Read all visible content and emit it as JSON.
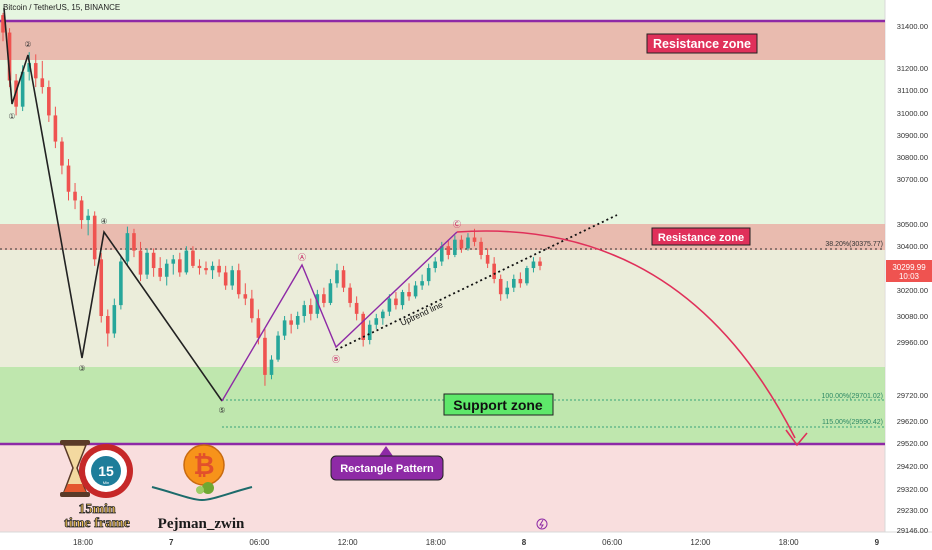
{
  "header": {
    "title": "Bitcoin / TetherUS, 15, BINANCE"
  },
  "colors": {
    "up": "#26a69a",
    "down": "#ef5350",
    "wick": "#3d3d3d",
    "resistance_fill": "#e9b0a6",
    "support_fill": "#b7e4a4",
    "bg_green": "#e6f6e0",
    "bg_pink": "#f9dede",
    "projection": "#e0305a",
    "purple": "#8e2aa6",
    "wave_line": "#222222"
  },
  "zones": {
    "resistance_top": {
      "label": "Resistance zone",
      "from": 31240,
      "to": 31430
    },
    "resistance_mid": {
      "label": "Resistance zone",
      "from": 30375,
      "to": 30490
    },
    "support": {
      "label": "Support zone",
      "from": 29520,
      "to": 29840
    }
  },
  "levels": {
    "fib_382": "38.20%(30375.77)",
    "fib_100": "100.00%(29701.02)",
    "fib_115": "115.00%(29590.42)"
  },
  "price_tag": {
    "price": "30299.99",
    "countdown": "10:03"
  },
  "annotations": {
    "rectangle_pattern": "Rectangle Pattern",
    "uptrend_line": "Uptrend line",
    "wave_labels": [
      "①",
      "②",
      "③",
      "④",
      "⑤"
    ],
    "abc_labels": [
      "Ⓐ",
      "Ⓑ",
      "Ⓒ"
    ]
  },
  "branding": {
    "timeframe_badge": "15",
    "badge_sub": "Min",
    "timeframe_line1": "15min",
    "timeframe_line2": "time frame",
    "author": "Pejman_zwin"
  },
  "chart_data": {
    "type": "candlestick",
    "title": "Bitcoin / TetherUS, 15, BINANCE",
    "price_axis": {
      "ticks": [
        31400,
        31200,
        31100,
        31000,
        30900,
        30800,
        30700,
        30500,
        30400,
        30200,
        30080,
        29960,
        29720,
        29620,
        29520,
        29420,
        29320,
        29230,
        29146
      ],
      "tick_labels": [
        "31400.00",
        "31200.00",
        "31100.00",
        "31000.00",
        "30900.00",
        "30800.00",
        "30700.00",
        "30500.00",
        "30400.00",
        "30200.00",
        "30080.00",
        "29960.00",
        "29720.00",
        "29620.00",
        "29520.00",
        "29420.00",
        "29320.00",
        "29230.00",
        "29146.00"
      ],
      "range": [
        29140,
        31460
      ]
    },
    "time_axis": {
      "labels": [
        "18:00",
        "7",
        "06:00",
        "12:00",
        "18:00",
        "8",
        "06:00",
        "12:00",
        "18:00",
        "9"
      ]
    },
    "last_price": 30299.99,
    "waves": [
      {
        "label": "①",
        "price": 31030
      },
      {
        "label": "②",
        "price": 31270
      },
      {
        "label": "③",
        "price": 29910
      },
      {
        "label": "④",
        "price": 30470
      },
      {
        "label": "⑤",
        "price": 29701
      },
      {
        "label": "Ⓐ",
        "price": 30300
      },
      {
        "label": "Ⓑ",
        "price": 29930
      },
      {
        "label": "Ⓒ",
        "price": 30445
      }
    ],
    "candles": [
      [
        31450,
        31460,
        31330,
        31370
      ],
      [
        31370,
        31390,
        31120,
        31150
      ],
      [
        31150,
        31180,
        30990,
        31030
      ],
      [
        31030,
        31220,
        31010,
        31190
      ],
      [
        31190,
        31280,
        31150,
        31230
      ],
      [
        31230,
        31270,
        31120,
        31160
      ],
      [
        31160,
        31240,
        31090,
        31120
      ],
      [
        31120,
        31150,
        30960,
        30990
      ],
      [
        30990,
        31030,
        30840,
        30870
      ],
      [
        30870,
        30890,
        30720,
        30760
      ],
      [
        30760,
        30790,
        30600,
        30640
      ],
      [
        30640,
        30680,
        30560,
        30600
      ],
      [
        30600,
        30620,
        30470,
        30510
      ],
      [
        30510,
        30560,
        30440,
        30530
      ],
      [
        30530,
        30550,
        30300,
        30330
      ],
      [
        30330,
        30360,
        30040,
        30070
      ],
      [
        30070,
        30100,
        29930,
        29990
      ],
      [
        29990,
        30150,
        29970,
        30120
      ],
      [
        30120,
        30340,
        30100,
        30320
      ],
      [
        30320,
        30480,
        30300,
        30450
      ],
      [
        30450,
        30470,
        30340,
        30370
      ],
      [
        30370,
        30410,
        30230,
        30260
      ],
      [
        30260,
        30380,
        30240,
        30360
      ],
      [
        30360,
        30380,
        30250,
        30290
      ],
      [
        30290,
        30340,
        30230,
        30250
      ],
      [
        30250,
        30330,
        30210,
        30310
      ],
      [
        30310,
        30350,
        30260,
        30330
      ],
      [
        30330,
        30360,
        30250,
        30270
      ],
      [
        30270,
        30390,
        30260,
        30370
      ],
      [
        30370,
        30390,
        30290,
        30300
      ],
      [
        30300,
        30330,
        30260,
        30290
      ],
      [
        30290,
        30320,
        30260,
        30280
      ],
      [
        30280,
        30320,
        30240,
        30300
      ],
      [
        30300,
        30330,
        30250,
        30270
      ],
      [
        30270,
        30300,
        30190,
        30210
      ],
      [
        30210,
        30300,
        30190,
        30280
      ],
      [
        30280,
        30310,
        30150,
        30170
      ],
      [
        30170,
        30220,
        30120,
        30150
      ],
      [
        30150,
        30190,
        30040,
        30060
      ],
      [
        30060,
        30100,
        29940,
        29970
      ],
      [
        29970,
        30010,
        29750,
        29800
      ],
      [
        29800,
        29890,
        29780,
        29870
      ],
      [
        29870,
        30000,
        29860,
        29980
      ],
      [
        29980,
        30070,
        29960,
        30050
      ],
      [
        30050,
        30080,
        29990,
        30030
      ],
      [
        30030,
        30090,
        30010,
        30070
      ],
      [
        30070,
        30140,
        30040,
        30120
      ],
      [
        30120,
        30150,
        30050,
        30080
      ],
      [
        30080,
        30190,
        30060,
        30170
      ],
      [
        30170,
        30200,
        30110,
        30130
      ],
      [
        30130,
        30240,
        30120,
        30220
      ],
      [
        30220,
        30310,
        30200,
        30280
      ],
      [
        30280,
        30300,
        30180,
        30200
      ],
      [
        30200,
        30220,
        30110,
        30130
      ],
      [
        30130,
        30160,
        30050,
        30080
      ],
      [
        30080,
        30090,
        29930,
        29960
      ],
      [
        29960,
        30050,
        29940,
        30030
      ],
      [
        30030,
        30080,
        30010,
        30060
      ],
      [
        30060,
        30100,
        30030,
        30090
      ],
      [
        30090,
        30170,
        30070,
        30150
      ],
      [
        30150,
        30180,
        30100,
        30120
      ],
      [
        30120,
        30190,
        30100,
        30180
      ],
      [
        30180,
        30220,
        30140,
        30160
      ],
      [
        30160,
        30230,
        30150,
        30210
      ],
      [
        30210,
        30260,
        30190,
        30230
      ],
      [
        30230,
        30310,
        30210,
        30290
      ],
      [
        30290,
        30340,
        30270,
        30320
      ],
      [
        30320,
        30410,
        30300,
        30390
      ],
      [
        30390,
        30420,
        30330,
        30350
      ],
      [
        30350,
        30440,
        30340,
        30420
      ],
      [
        30420,
        30440,
        30360,
        30380
      ],
      [
        30380,
        30450,
        30370,
        30430
      ],
      [
        30430,
        30470,
        30390,
        30410
      ],
      [
        30410,
        30430,
        30330,
        30350
      ],
      [
        30350,
        30380,
        30290,
        30310
      ],
      [
        30310,
        30340,
        30220,
        30240
      ],
      [
        30240,
        30260,
        30140,
        30170
      ],
      [
        30170,
        30230,
        30150,
        30200
      ],
      [
        30200,
        30260,
        30180,
        30240
      ],
      [
        30240,
        30270,
        30200,
        30220
      ],
      [
        30220,
        30300,
        30210,
        30290
      ],
      [
        30290,
        30340,
        30270,
        30320
      ],
      [
        30320,
        30340,
        30280,
        30300
      ]
    ]
  }
}
